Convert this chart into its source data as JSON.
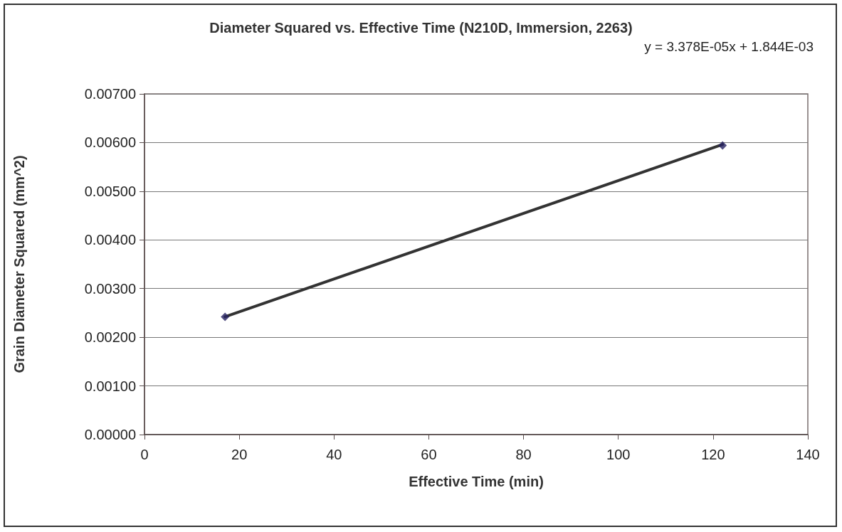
{
  "chart_data": {
    "type": "scatter",
    "title": "Diameter Squared vs. Effective Time (N210D, Immersion, 2263)",
    "xlabel": "Effective Time (min)",
    "ylabel": "Grain Diameter Squared (mm^2)",
    "annotations": [
      "y = 3.378E-05x + 1.844E-03"
    ],
    "x": [
      17,
      122
    ],
    "series": [
      {
        "type": "scatter",
        "color": "#262262",
        "marker": "diamond",
        "values": [
          0.00242,
          0.00594
        ]
      },
      {
        "type": "line",
        "color": "#333333",
        "marker": "none",
        "line_style": "solid",
        "values": [
          0.00242,
          0.00596
        ]
      }
    ],
    "xlim": [
      0,
      140
    ],
    "xticks": [
      0,
      20,
      40,
      60,
      80,
      100,
      120,
      140
    ],
    "ylim": [
      0,
      0.007
    ],
    "yticks": [
      {
        "value": 0,
        "label": "0.00000"
      },
      {
        "value": 0.001,
        "label": "0.00100"
      },
      {
        "value": 0.002,
        "label": "0.00200"
      },
      {
        "value": 0.003,
        "label": "0.00300"
      },
      {
        "value": 0.004,
        "label": "0.00400"
      },
      {
        "value": 0.005,
        "label": "0.00500"
      },
      {
        "value": 0.006,
        "label": "0.00600"
      },
      {
        "value": 0.007,
        "label": "0.00700"
      }
    ],
    "grid": "y"
  }
}
